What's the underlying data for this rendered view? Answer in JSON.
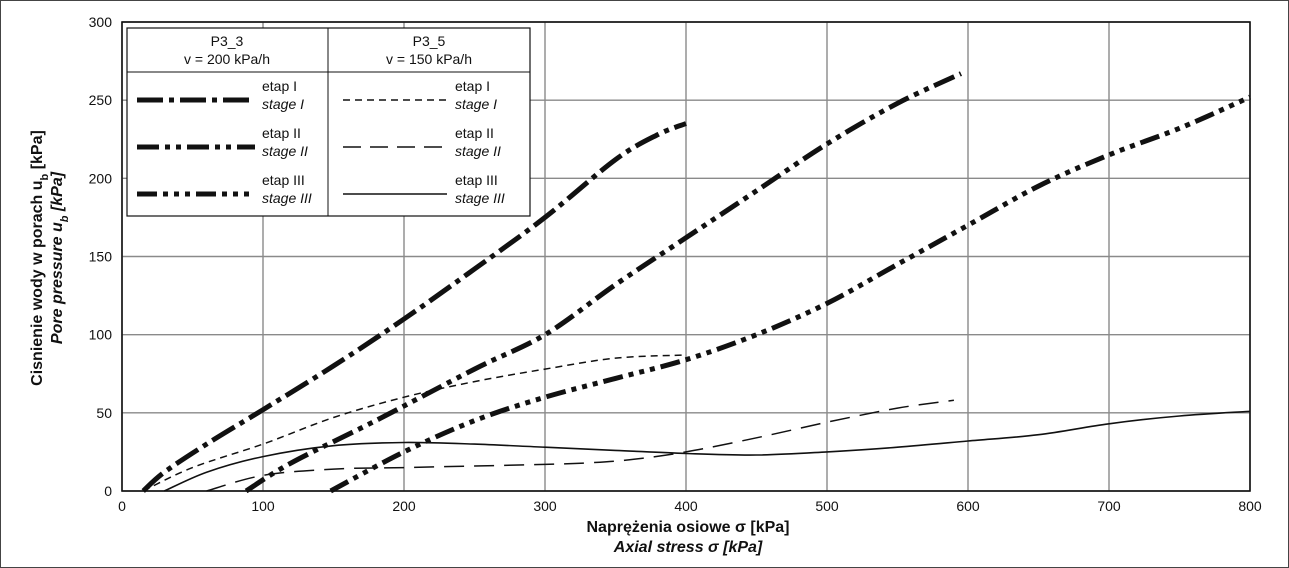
{
  "chart_data": {
    "type": "line",
    "xlabel": "Naprężenia osiowe σ [kPa]",
    "xlabel_en": "Axial stress σ [kPa]",
    "ylabel": "Cisnienie wody w porach u",
    "ylabel_sub": "b",
    "ylabel_unit": " [kPa]",
    "ylabel_en": "Pore pressure u",
    "ylabel_en_sub": "b",
    "ylabel_en_unit": " [kPa]",
    "xlim": [
      0,
      800
    ],
    "ylim": [
      0,
      300
    ],
    "xticks": [
      "0",
      "100",
      "200",
      "300",
      "400",
      "500",
      "600",
      "700",
      "800"
    ],
    "yticks": [
      "0",
      "50",
      "100",
      "150",
      "200",
      "250",
      "300"
    ],
    "grid": true,
    "legend": {
      "placement": "top-left",
      "groups": [
        {
          "name": "P3_3",
          "subtitle": "v = 200 kPa/h"
        },
        {
          "name": "P3_5",
          "subtitle": "v = 150 kPa/h"
        }
      ],
      "entries": [
        {
          "label": "etap I",
          "label_en": "stage I"
        },
        {
          "label": "etap II",
          "label_en": "stage II"
        },
        {
          "label": "etap III",
          "label_en": "stage III"
        }
      ]
    },
    "series": [
      {
        "group": "P3_3",
        "stage": "I",
        "style": "dash-dot-thick",
        "x": [
          15,
          30,
          60,
          100,
          150,
          200,
          250,
          300,
          350,
          380,
          400
        ],
        "y": [
          0,
          12,
          30,
          52,
          80,
          110,
          142,
          175,
          212,
          228,
          235
        ]
      },
      {
        "group": "P3_3",
        "stage": "II",
        "style": "dash-dot-dot-thick",
        "x": [
          88,
          120,
          180,
          250,
          300,
          350,
          400,
          450,
          500,
          550,
          595
        ],
        "y": [
          0,
          18,
          45,
          78,
          100,
          132,
          162,
          192,
          222,
          248,
          267
        ]
      },
      {
        "group": "P3_3",
        "stage": "III",
        "style": "dash-dot-dot-dot-thick",
        "x": [
          148,
          200,
          250,
          300,
          350,
          400,
          450,
          500,
          550,
          600,
          650,
          700,
          750,
          800
        ],
        "y": [
          0,
          25,
          45,
          60,
          72,
          84,
          100,
          120,
          145,
          170,
          195,
          215,
          232,
          252
        ]
      },
      {
        "group": "P3_5",
        "stage": "I",
        "style": "short-dash-thin",
        "x": [
          15,
          50,
          100,
          150,
          200,
          250,
          300,
          350,
          400
        ],
        "y": [
          0,
          15,
          30,
          47,
          60,
          70,
          78,
          85,
          87
        ]
      },
      {
        "group": "P3_5",
        "stage": "II",
        "style": "long-dash-thin",
        "x": [
          60,
          100,
          150,
          200,
          250,
          300,
          330,
          360,
          400,
          450,
          500,
          550,
          590
        ],
        "y": [
          0,
          10,
          14,
          15,
          16,
          17,
          18,
          20,
          25,
          34,
          44,
          53,
          58
        ]
      },
      {
        "group": "P3_5",
        "stage": "III",
        "style": "solid-thin",
        "x": [
          30,
          60,
          100,
          150,
          200,
          250,
          300,
          350,
          400,
          450,
          500,
          550,
          600,
          650,
          700,
          750,
          800
        ],
        "y": [
          0,
          12,
          22,
          29,
          31,
          30,
          28,
          26,
          24,
          23,
          25,
          28,
          32,
          36,
          43,
          48,
          51
        ]
      }
    ]
  }
}
